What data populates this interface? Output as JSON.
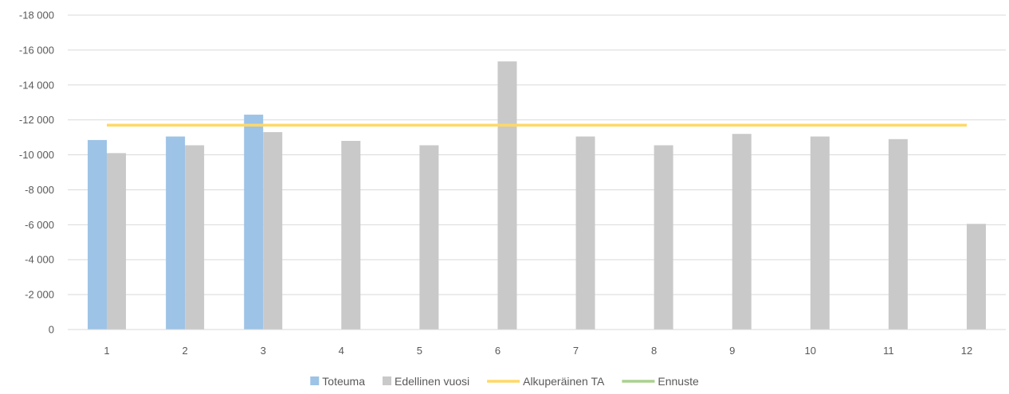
{
  "chart_data": {
    "type": "bar",
    "categories": [
      "1",
      "2",
      "3",
      "4",
      "5",
      "6",
      "7",
      "8",
      "9",
      "10",
      "11",
      "12"
    ],
    "y_ticks": [
      "0",
      "-2 000",
      "-4 000",
      "-6 000",
      "-8 000",
      "-10 000",
      "-12 000",
      "-14 000",
      "-16 000",
      "-18 000"
    ],
    "ylim": [
      0,
      -18000
    ],
    "y_inverted": true,
    "grid": true,
    "legend_position": "bottom",
    "series": [
      {
        "name": "Toteuma",
        "kind": "bar",
        "color": "#9dc3e6",
        "values": [
          -10850,
          -11050,
          -12300,
          null,
          null,
          null,
          null,
          null,
          null,
          null,
          null,
          null
        ]
      },
      {
        "name": "Edellinen vuosi",
        "kind": "bar",
        "color": "#c9c9c9",
        "values": [
          -10100,
          -10550,
          -11300,
          -10800,
          -10550,
          -15350,
          -11050,
          -10550,
          -11200,
          -11050,
          -10900,
          -6050
        ]
      },
      {
        "name": "Alkuperäinen TA",
        "kind": "line",
        "color": "#ffd966",
        "values": [
          -11700,
          -11700,
          -11700,
          -11700,
          -11700,
          -11700,
          -11700,
          -11700,
          -11700,
          -11700,
          -11700,
          -11700
        ]
      },
      {
        "name": "Ennuste",
        "kind": "line",
        "color": "#a9d18e",
        "values": [
          null,
          null,
          null,
          null,
          null,
          null,
          null,
          null,
          null,
          null,
          null,
          null
        ]
      }
    ]
  }
}
